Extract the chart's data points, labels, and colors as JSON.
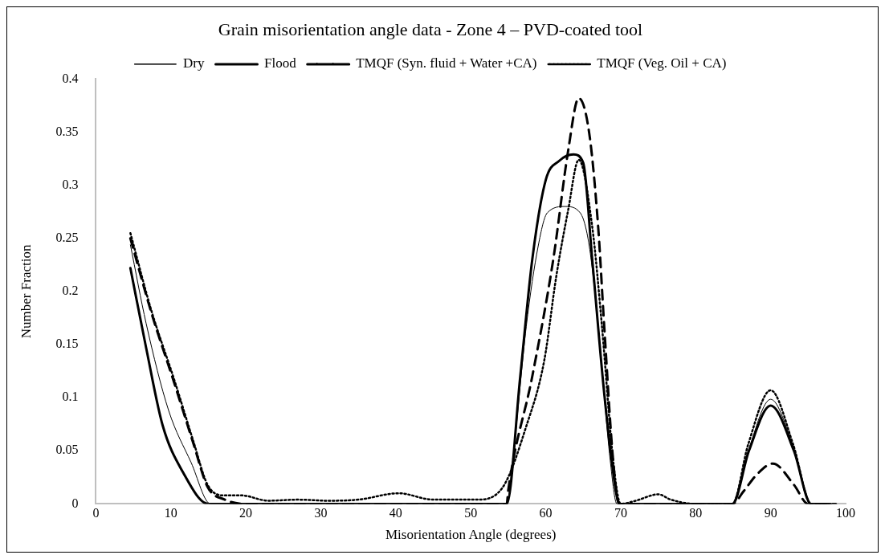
{
  "chart_data": {
    "type": "line",
    "title": "Grain misorientation angle data - Zone 4 – PVD-coated tool",
    "xlabel": "Misorientation Angle (degrees)",
    "ylabel": "Number Fraction",
    "xlim": [
      0,
      100
    ],
    "xticks": [
      0,
      10,
      20,
      30,
      40,
      50,
      60,
      70,
      80,
      90,
      100
    ],
    "ylim": [
      0,
      0.4
    ],
    "yticks": [
      0,
      0.05,
      0.1,
      0.15,
      0.2,
      0.25,
      0.3,
      0.35,
      0.4
    ],
    "grid": false,
    "legend": "top",
    "marker": "none",
    "series": [
      {
        "name": "Dry",
        "color": "#000000",
        "line_style": "solid",
        "x": [
          4.6,
          6.7,
          9.7,
          12.7,
          15.3,
          20,
          30,
          40,
          50,
          54.8,
          55.6,
          57.4,
          59,
          60.2,
          62.6,
          64.6,
          65.8,
          67,
          68.6,
          69.5,
          75,
          80,
          84.9,
          87.1,
          90,
          93.1,
          95.4,
          98
        ],
        "values": [
          0.244,
          0.17,
          0.088,
          0.039,
          0,
          0,
          0,
          0,
          0,
          0,
          0.041,
          0.167,
          0.243,
          0.274,
          0.28,
          0.274,
          0.243,
          0.167,
          0.041,
          0,
          0,
          0,
          0,
          0.052,
          0.0985,
          0.052,
          0,
          0
        ]
      },
      {
        "name": "Flood",
        "color": "#000000",
        "line_style": "solid",
        "x": [
          4.6,
          6.7,
          8.9,
          11.6,
          15,
          20,
          30,
          40,
          50,
          54.8,
          56.6,
          58.2,
          60,
          61.8,
          63.7,
          65,
          66.2,
          67.8,
          69.4,
          69.8,
          75,
          80,
          84.9,
          87.1,
          90,
          93.1,
          95.4,
          98
        ],
        "values": [
          0.222,
          0.147,
          0.074,
          0.03,
          0,
          0,
          0,
          0,
          0,
          0,
          0.12,
          0.23,
          0.305,
          0.323,
          0.329,
          0.321,
          0.23,
          0.104,
          0.01,
          0,
          0,
          0,
          0,
          0.05,
          0.0926,
          0.05,
          0,
          0
        ]
      },
      {
        "name": "TMQF (Syn. fluid + Water +CA)",
        "color": "#000000",
        "line_style": "dashed",
        "x": [
          4.6,
          7.4,
          10.4,
          13,
          14.9,
          17.2,
          20,
          30,
          40,
          50,
          54.8,
          55,
          58.2,
          61,
          63,
          64.4,
          65.8,
          67,
          67.8,
          69,
          69.8,
          75,
          80,
          84.9,
          86.4,
          88.2,
          90.3,
          93.1,
          95,
          98.7
        ],
        "values": [
          0.25,
          0.18,
          0.115,
          0.057,
          0.016,
          0.004,
          0,
          0,
          0,
          0,
          0,
          0.013,
          0.12,
          0.23,
          0.333,
          0.382,
          0.349,
          0.26,
          0.167,
          0.04,
          0,
          0,
          0,
          0,
          0.012,
          0.028,
          0.038,
          0.018,
          0,
          0
        ]
      },
      {
        "name": "TMQF (Veg. Oil + CA)",
        "color": "#000000",
        "line_style": "dotted",
        "x": [
          4.6,
          7.4,
          10.4,
          13,
          14.9,
          17.2,
          19.4,
          23,
          27,
          31,
          35,
          40.4,
          45,
          50.8,
          54.2,
          57.4,
          59.8,
          61.4,
          63,
          64.4,
          66.2,
          67.5,
          69,
          70,
          72,
          75,
          76.7,
          80,
          84.9,
          87,
          90,
          93,
          95.4,
          98
        ],
        "values": [
          0.255,
          0.182,
          0.118,
          0.059,
          0.018,
          0.008,
          0.008,
          0.003,
          0.004,
          0.003,
          0.004,
          0.01,
          0.004,
          0.004,
          0.015,
          0.073,
          0.135,
          0.214,
          0.277,
          0.324,
          0.261,
          0.167,
          0.04,
          0,
          0.003,
          0.009,
          0.004,
          0,
          0,
          0.056,
          0.107,
          0.056,
          0,
          0
        ]
      }
    ]
  }
}
